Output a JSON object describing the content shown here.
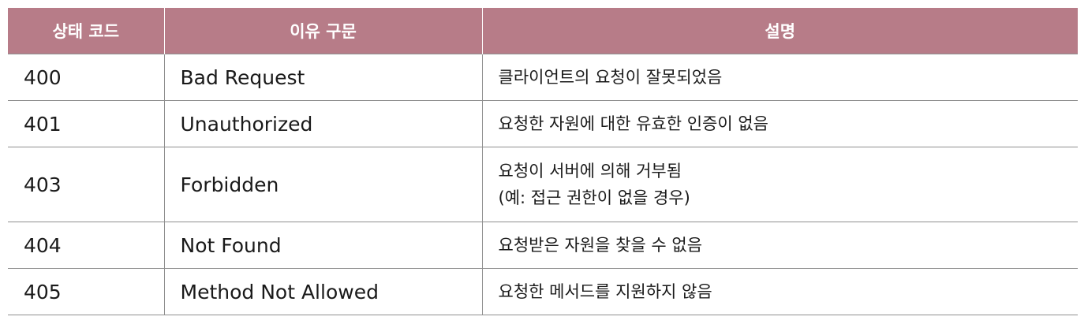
{
  "headers": [
    "상태 코드",
    "이유 구문",
    "설명"
  ],
  "accent_color": "#b77c88",
  "rows": [
    {
      "code": "400",
      "reason": "Bad Request",
      "desc": [
        "클라이언트의 요청이 잘못되었음"
      ]
    },
    {
      "code": "401",
      "reason": "Unauthorized",
      "desc": [
        "요청한 자원에 대한 유효한 인증이 없음"
      ]
    },
    {
      "code": "403",
      "reason": "Forbidden",
      "desc": [
        "요청이 서버에 의해 거부됨",
        "(예: 접근 권한이 없을 경우)"
      ]
    },
    {
      "code": "404",
      "reason": "Not Found",
      "desc": [
        "요청받은 자원을 찾을 수 없음"
      ]
    },
    {
      "code": "405",
      "reason": "Method Not Allowed",
      "desc": [
        "요청한 메서드를 지원하지 않음"
      ]
    }
  ]
}
